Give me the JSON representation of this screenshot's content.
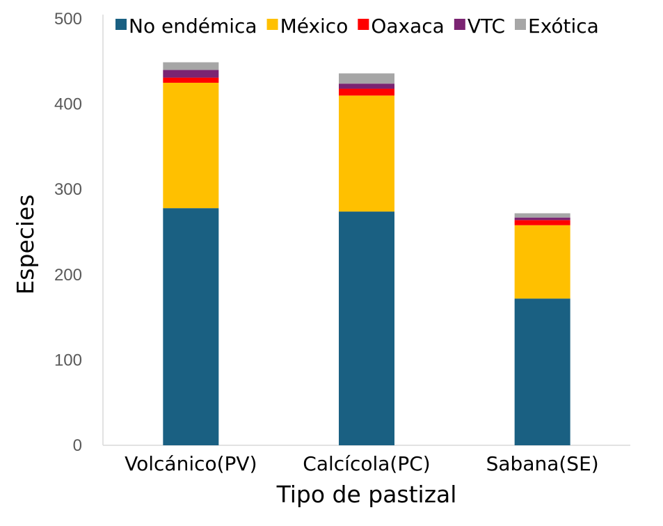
{
  "chart_data": {
    "type": "bar",
    "stacked": true,
    "title": "",
    "xlabel": "Tipo de pastizal",
    "ylabel": "Especies",
    "ylim": [
      0,
      500
    ],
    "yticks": [
      0,
      100,
      200,
      300,
      400,
      500
    ],
    "categories": [
      "Volcánico(PV)",
      "Calcícola(PC)",
      "Sabana(SE)"
    ],
    "legend_position": "top",
    "series": [
      {
        "name": "No endémica",
        "color": "#1a6082",
        "values": [
          278,
          274,
          172
        ]
      },
      {
        "name": "México",
        "color": "#ffc000",
        "values": [
          147,
          136,
          86
        ]
      },
      {
        "name": "Oaxaca",
        "color": "#ff0000",
        "values": [
          6,
          8,
          6
        ]
      },
      {
        "name": "VTC",
        "color": "#7b2472",
        "values": [
          9,
          6,
          3
        ]
      },
      {
        "name": "Exótica",
        "color": "#a6a6a6",
        "values": [
          9,
          12,
          5
        ]
      }
    ]
  }
}
